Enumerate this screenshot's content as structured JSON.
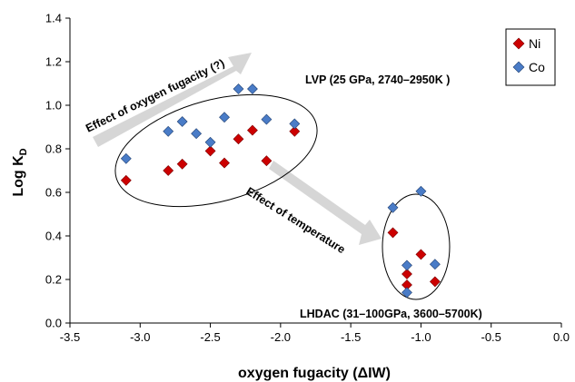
{
  "chart_data": {
    "type": "scatter",
    "xlabel": "oxygen fugacity  (ΔIW)",
    "ylabel_main": "Log K",
    "ylabel_sub": "D",
    "xlim": [
      -3.5,
      0.0
    ],
    "ylim": [
      0.0,
      1.4
    ],
    "xticks": [
      -3.5,
      -3.0,
      -2.5,
      -2.0,
      -1.5,
      -1.0,
      -0.5,
      0.0
    ],
    "xtick_labels": [
      "-3.5",
      "-3.0",
      "-2.5",
      "-2.0",
      "-1.5",
      "-1.0",
      "-0.5",
      "0.0"
    ],
    "yticks": [
      0.0,
      0.2,
      0.4,
      0.6,
      0.8,
      1.0,
      1.2,
      1.4
    ],
    "ytick_labels": [
      "0.0",
      "0.2",
      "0.4",
      "0.6",
      "0.8",
      "1.0",
      "1.2",
      "1.4"
    ],
    "grid": false,
    "legend_position": "top-right",
    "series": [
      {
        "name": "Ni",
        "color": "#cc0000",
        "marker": "diamond",
        "points": [
          [
            -3.1,
            0.655
          ],
          [
            -2.8,
            0.7
          ],
          [
            -2.7,
            0.73
          ],
          [
            -2.5,
            0.79
          ],
          [
            -2.4,
            0.735
          ],
          [
            -2.3,
            0.845
          ],
          [
            -2.2,
            0.885
          ],
          [
            -2.1,
            0.745
          ],
          [
            -1.9,
            0.88
          ],
          [
            -1.2,
            0.415
          ],
          [
            -1.1,
            0.225
          ],
          [
            -1.1,
            0.175
          ],
          [
            -1.0,
            0.315
          ],
          [
            -0.9,
            0.19
          ]
        ]
      },
      {
        "name": "Co",
        "color": "#4a7cc7",
        "marker": "diamond",
        "points": [
          [
            -3.1,
            0.755
          ],
          [
            -2.8,
            0.88
          ],
          [
            -2.7,
            0.925
          ],
          [
            -2.6,
            0.87
          ],
          [
            -2.5,
            0.83
          ],
          [
            -2.4,
            0.945
          ],
          [
            -2.3,
            1.075
          ],
          [
            -2.2,
            1.075
          ],
          [
            -2.1,
            0.935
          ],
          [
            -1.9,
            0.915
          ],
          [
            -1.2,
            0.53
          ],
          [
            -1.0,
            0.605
          ],
          [
            -1.1,
            0.265
          ],
          [
            -0.9,
            0.27
          ],
          [
            -1.1,
            0.14
          ]
        ]
      }
    ],
    "annotations": [
      "Effect  of oxygen fugacity (?)",
      "LVP (25 GPa, 2740–2950K )",
      "Effect  of temperature",
      "LHDAC (31–100GPa, 3600–5700K)"
    ]
  }
}
